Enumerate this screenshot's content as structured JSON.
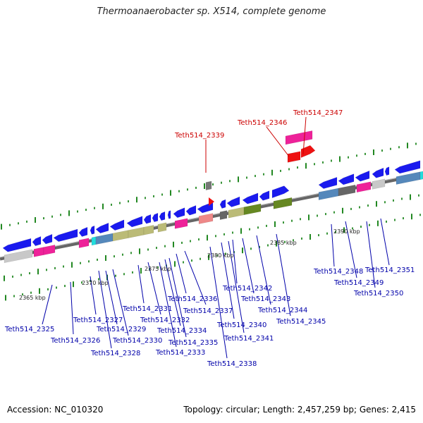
{
  "title": "Thermoanaerobacter sp. X514, complete genome",
  "footer": {
    "accession": "Accession: NC_010320",
    "stats": "Topology: circular; Length: 2,457,259 bp; Genes: 2,415"
  },
  "colors": {
    "axis": "#777777",
    "tick": "#228822",
    "highlight_label": "#cc0000",
    "label": "#0000aa"
  },
  "kbp_labels": [
    {
      "text": "2365 kbp"
    },
    {
      "text": "2370 kbp"
    },
    {
      "text": "2375 kbp"
    },
    {
      "text": "2380 kbp"
    },
    {
      "text": "2385 kbp"
    },
    {
      "text": "2390 kbp"
    }
  ],
  "highlight_labels": [
    {
      "text": "Teth514_2339"
    },
    {
      "text": "Teth514_2346"
    },
    {
      "text": "Teth514_2347"
    }
  ],
  "gene_labels": [
    {
      "text": "Teth514_2325"
    },
    {
      "text": "Teth514_2326"
    },
    {
      "text": "Teth514_2327"
    },
    {
      "text": "Teth514_2328"
    },
    {
      "text": "Teth514_2329"
    },
    {
      "text": "Teth514_2330"
    },
    {
      "text": "Teth514_2331"
    },
    {
      "text": "Teth514_2332"
    },
    {
      "text": "Teth514_2333"
    },
    {
      "text": "Teth514_2334"
    },
    {
      "text": "Teth514_2335"
    },
    {
      "text": "Teth514_2336"
    },
    {
      "text": "Teth514_2337"
    },
    {
      "text": "Teth514_2338"
    },
    {
      "text": "Teth514_2340"
    },
    {
      "text": "Teth514_2341"
    },
    {
      "text": "Teth514_2342"
    },
    {
      "text": "Teth514_2343"
    },
    {
      "text": "Teth514_2344"
    },
    {
      "text": "Teth514_2345"
    },
    {
      "text": "Teth514_2348"
    },
    {
      "text": "Teth514_2349"
    },
    {
      "text": "Teth514_2350"
    },
    {
      "text": "Teth514_2351"
    }
  ]
}
